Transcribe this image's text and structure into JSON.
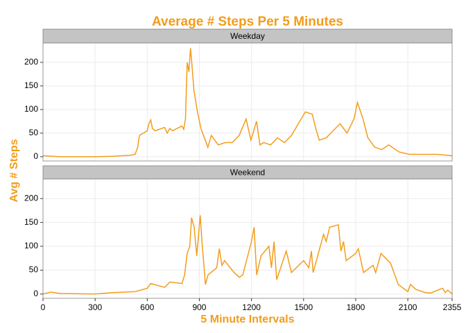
{
  "chart_data": {
    "type": "line",
    "title": "Average # Steps Per 5 Minutes",
    "x_label": "5 Minute Intervals",
    "y_label": "Avg # Steps",
    "color": "#f39c1a",
    "grid": true,
    "xlim": [
      0,
      2355
    ],
    "xticks": [
      0,
      300,
      600,
      900,
      1200,
      1500,
      1800,
      2100,
      2355
    ],
    "ylim": [
      -9,
      241
    ],
    "yticks": [
      0,
      50,
      100,
      150,
      200
    ],
    "facets": [
      {
        "name": "Weekday",
        "x": [
          0,
          100,
          200,
          300,
          400,
          500,
          530,
          545,
          555,
          600,
          610,
          620,
          630,
          645,
          700,
          715,
          730,
          745,
          800,
          810,
          820,
          830,
          840,
          849,
          855,
          869,
          889,
          909,
          929,
          949,
          969,
          1009,
          1049,
          1089,
          1129,
          1169,
          1197,
          1229,
          1249,
          1270,
          1310,
          1350,
          1390,
          1430,
          1510,
          1550,
          1570,
          1590,
          1630,
          1670,
          1710,
          1750,
          1790,
          1810,
          1842,
          1870,
          1910,
          1950,
          1990,
          2050,
          2110,
          2190,
          2271,
          2355
        ],
        "values": [
          2,
          0,
          0,
          0,
          1,
          3,
          5,
          20,
          45,
          55,
          70,
          78,
          60,
          55,
          62,
          50,
          60,
          55,
          65,
          58,
          80,
          200,
          180,
          230,
          205,
          140,
          95,
          60,
          40,
          20,
          45,
          25,
          30,
          30,
          45,
          80,
          35,
          75,
          25,
          30,
          25,
          40,
          30,
          45,
          95,
          90,
          60,
          35,
          40,
          55,
          70,
          50,
          80,
          115,
          80,
          40,
          20,
          15,
          25,
          10,
          5,
          5,
          5,
          2
        ]
      },
      {
        "name": "Weekend",
        "x": [
          0,
          45,
          100,
          300,
          400,
          530,
          600,
          620,
          700,
          730,
          800,
          815,
          830,
          845,
          855,
          870,
          885,
          905,
          915,
          935,
          950,
          1000,
          1015,
          1030,
          1045,
          1100,
          1130,
          1150,
          1200,
          1215,
          1230,
          1255,
          1300,
          1315,
          1330,
          1345,
          1400,
          1430,
          1500,
          1530,
          1545,
          1555,
          1615,
          1630,
          1650,
          1700,
          1715,
          1730,
          1745,
          1800,
          1815,
          1845,
          1900,
          1915,
          1945,
          2000,
          2030,
          2045,
          2100,
          2115,
          2145,
          2200,
          2230,
          2300,
          2315,
          2330,
          2355
        ],
        "values": [
          0,
          4,
          1,
          0,
          3,
          5,
          12,
          22,
          14,
          25,
          22,
          40,
          85,
          100,
          160,
          140,
          80,
          165,
          110,
          20,
          40,
          55,
          95,
          60,
          70,
          45,
          35,
          40,
          110,
          140,
          40,
          80,
          100,
          55,
          110,
          30,
          90,
          45,
          70,
          55,
          90,
          45,
          125,
          110,
          140,
          145,
          90,
          110,
          70,
          85,
          95,
          45,
          60,
          45,
          85,
          65,
          35,
          20,
          5,
          20,
          10,
          3,
          2,
          12,
          3,
          8,
          0
        ]
      }
    ]
  }
}
